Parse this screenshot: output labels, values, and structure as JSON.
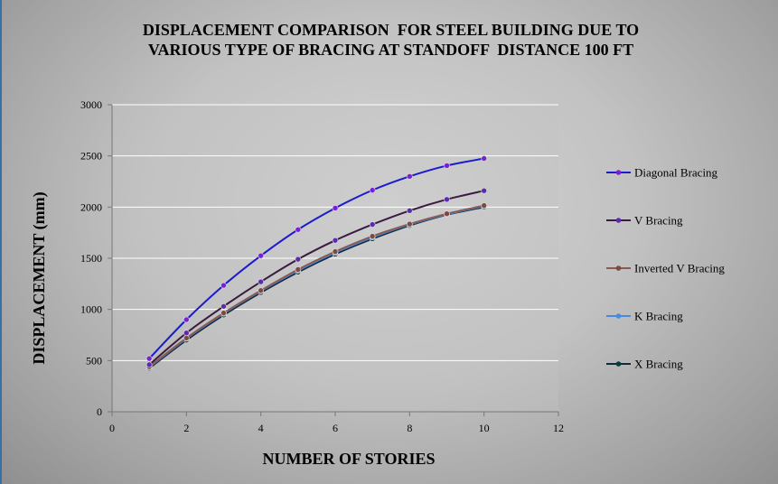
{
  "chart_data": {
    "type": "line",
    "title_lines": [
      "DISPLACEMENT COMPARISON  FOR STEEL BUILDING DUE TO",
      "VARIOUS TYPE OF BRACING AT STANDOFF  DISTANCE 100 FT"
    ],
    "xlabel": "NUMBER OF STORIES",
    "ylabel": "DISPLACEMENT (mm)",
    "xlim": [
      0,
      12
    ],
    "ylim": [
      0,
      3000
    ],
    "x_ticks": [
      0,
      2,
      4,
      6,
      8,
      10,
      12
    ],
    "y_ticks": [
      0,
      500,
      1000,
      1500,
      2000,
      2500,
      3000
    ],
    "grid": "horizontal",
    "legend_position": "right",
    "x": [
      1,
      2,
      3,
      4,
      5,
      6,
      7,
      8,
      9,
      10
    ],
    "series": [
      {
        "name": "Diagonal Bracing",
        "color": "#1a1ad0",
        "marker_color": "#7a1fd6",
        "values": [
          520,
          900,
          1235,
          1525,
          1780,
          1990,
          2165,
          2300,
          2405,
          2475
        ]
      },
      {
        "name": "V Bracing",
        "color": "#3a1a3e",
        "marker_color": "#5a2ab0",
        "values": [
          460,
          770,
          1030,
          1270,
          1490,
          1675,
          1830,
          1965,
          2075,
          2160
        ]
      },
      {
        "name": "Inverted V Bracing",
        "color": "#8a5a52",
        "marker_color": "#7a4a45",
        "values": [
          440,
          720,
          965,
          1185,
          1390,
          1565,
          1715,
          1835,
          1935,
          2015
        ]
      },
      {
        "name": "K Bracing",
        "color": "#4a8adc",
        "marker_color": "#4a8adc",
        "values": [
          435,
          715,
          960,
          1180,
          1380,
          1555,
          1705,
          1830,
          1930,
          2010
        ]
      },
      {
        "name": "X Bracing",
        "color": "#0f2a40",
        "marker_color": "#0a3a3a",
        "values": [
          425,
          700,
          945,
          1165,
          1365,
          1540,
          1690,
          1820,
          1925,
          2000
        ]
      }
    ]
  }
}
